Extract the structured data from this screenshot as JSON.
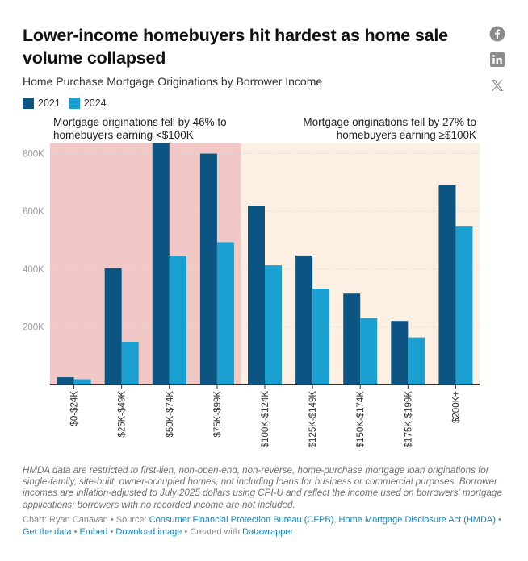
{
  "header": {
    "title": "Lower-income homebuyers hit hardest as home sale volume collapsed",
    "subtitle": "Home Purchase Mortgage Originations by Borrower Income"
  },
  "social": [
    {
      "name": "facebook-icon",
      "glyph": "f"
    },
    {
      "name": "linkedin-icon",
      "glyph": "in"
    },
    {
      "name": "x-icon",
      "glyph": "𝕏"
    }
  ],
  "chart_data": {
    "type": "bar",
    "categories": [
      "$0-$24K",
      "$25K-$49K",
      "$50K-$74K",
      "$75K-$99K",
      "$100K-$124K",
      "$125K-$149K",
      "$150K-$174K",
      "$175K-$199K",
      "$200K+"
    ],
    "series": [
      {
        "name": "2021",
        "color": "#0c5582",
        "values": [
          25000,
          403000,
          835000,
          800000,
          620000,
          447000,
          315000,
          220000,
          690000
        ]
      },
      {
        "name": "2024",
        "color": "#1a9fd1",
        "values": [
          18000,
          148000,
          447000,
          493000,
          413000,
          332000,
          230000,
          163000,
          547000
        ]
      }
    ],
    "ylim": [
      0,
      835000
    ],
    "yticks": [
      200000,
      400000,
      600000,
      800000
    ],
    "ytick_labels": [
      "200K",
      "400K",
      "600K",
      "800K"
    ],
    "shaded_regions": [
      {
        "from": 0,
        "to": 3,
        "color": "#f1c8c6",
        "annotation": "Mortgage originations fell by 46% to homebuyers earning <$100K",
        "align": "left"
      },
      {
        "from": 4,
        "to": 8,
        "color": "#fdf0e3",
        "annotation": "Mortgage originations fell by 27% to homebuyers earning ≥$100K",
        "align": "right"
      }
    ]
  },
  "footer": {
    "note": "HMDA data are restricted to first-lien, non-open-end, non-reverse, home-purchase mortgage loan originations for single-family, site-built, owner-occupied homes, not including loans for business or commercial purposes. Borrower incomes are inflation-adjusted to July 2025 dollars using CPI-U and reflect the income used on borrowers' mortgage applications; borrowers with no recorded income are not included.",
    "chart_by": "Chart: Ryan Canavan",
    "source_prefix": "Source:",
    "source_1": "Consumer Financial Protection Bureau (CFPB)",
    "source_sep": ",",
    "source_2": "Home Mortgage Disclosure Act (HMDA)",
    "get_data": "Get the data",
    "embed": "Embed",
    "download": "Download image",
    "created_prefix": "Created with",
    "datawrapper": "Datawrapper",
    "dot": "•"
  }
}
